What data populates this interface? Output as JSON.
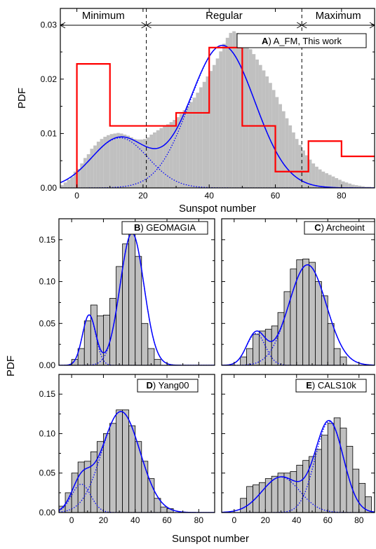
{
  "figure": {
    "y_title": "PDF",
    "x_title": "Sunspot number",
    "colors": {
      "histogram": "#c0c0c0",
      "bar_edge": "#000000",
      "fit": "#0000ff",
      "step": "#ff0000"
    }
  },
  "chart_data": [
    {
      "type": "bar",
      "panel": "A",
      "label_letter": "A",
      "label_text": ") A_FM, This work",
      "xlim": [
        -5,
        90
      ],
      "ylim": [
        0,
        0.033
      ],
      "x_ticks": [
        0,
        20,
        40,
        60,
        80
      ],
      "x_tick_labels": [
        "0",
        "20",
        "40",
        "60",
        "80"
      ],
      "y_ticks": [
        0,
        0.01,
        0.02,
        0.03
      ],
      "y_tick_labels": [
        "0.00",
        "0.01",
        "0.02",
        "0.03"
      ],
      "xlabel": "Sunspot number",
      "ylabel": "PDF",
      "regions": [
        {
          "name": "Minimum",
          "from": -5,
          "to": 21
        },
        {
          "name": "Regular",
          "from": 21,
          "to": 68
        },
        {
          "name": "Maximum",
          "from": 68,
          "to": 90
        }
      ],
      "dividers": [
        21,
        68
      ],
      "histogram": {
        "bin_start": -5,
        "bin_width": 1,
        "values": [
          0.0005,
          0.001,
          0.0015,
          0.002,
          0.003,
          0.0035,
          0.0045,
          0.0055,
          0.0062,
          0.0072,
          0.0078,
          0.0085,
          0.009,
          0.0094,
          0.0097,
          0.0099,
          0.01,
          0.0101,
          0.01,
          0.0098,
          0.0096,
          0.0093,
          0.009,
          0.0089,
          0.0089,
          0.009,
          0.0093,
          0.0098,
          0.0102,
          0.0106,
          0.011,
          0.0113,
          0.0117,
          0.0121,
          0.0125,
          0.013,
          0.0136,
          0.0143,
          0.015,
          0.0158,
          0.0166,
          0.0175,
          0.0185,
          0.0195,
          0.0205,
          0.0215,
          0.0226,
          0.0238,
          0.0251,
          0.0265,
          0.0276,
          0.0285,
          0.0288,
          0.0285,
          0.0277,
          0.0268,
          0.0262,
          0.0255,
          0.0246,
          0.0236,
          0.0226,
          0.0216,
          0.0205,
          0.0193,
          0.018,
          0.0167,
          0.0154,
          0.0141,
          0.0128,
          0.0115,
          0.0102,
          0.009,
          0.0079,
          0.0069,
          0.006,
          0.0052,
          0.0045,
          0.0039,
          0.0034,
          0.003,
          0.0027,
          0.0024,
          0.0021,
          0.0018,
          0.0015,
          0.0012,
          0.001,
          0.0008,
          0.0006,
          0.0005,
          0.0004,
          0.0003,
          0.0002,
          0.0002,
          0.0001
        ]
      },
      "step": {
        "edges": [
          0,
          10,
          20,
          30,
          40,
          50,
          60,
          70,
          80,
          90
        ],
        "values": [
          0.0228,
          0.0114,
          0.0114,
          0.0138,
          0.0258,
          0.0114,
          0.003,
          0.0086,
          0.0058
        ]
      },
      "fit": {
        "components": [
          {
            "amp": 0.0092,
            "mu": 13,
            "sigma": 8.5
          },
          {
            "amp": 0.0262,
            "mu": 44,
            "sigma": 9.8
          }
        ]
      }
    },
    {
      "type": "bar",
      "panel": "B",
      "label_letter": "B",
      "label_text": ") GEOMAGIA",
      "xlim": [
        -8,
        90
      ],
      "ylim": [
        0,
        0.175
      ],
      "x_ticks": [
        0,
        20,
        40,
        60,
        80
      ],
      "x_tick_labels": [],
      "y_ticks": [
        0,
        0.05,
        0.1,
        0.15
      ],
      "y_tick_labels": [
        "0.00",
        "0.05",
        "0.10",
        "0.15"
      ],
      "histogram": {
        "bin_start": 0,
        "bin_width": 4,
        "values": [
          0.007,
          0.02,
          0.053,
          0.072,
          0.059,
          0.06,
          0.08,
          0.118,
          0.145,
          0.162,
          0.13,
          0.05,
          0.02,
          0.007
        ]
      },
      "fit": {
        "components": [
          {
            "amp": 0.06,
            "mu": 11,
            "sigma": 4.2
          },
          {
            "amp": 0.158,
            "mu": 38,
            "sigma": 7.5
          }
        ]
      }
    },
    {
      "type": "bar",
      "panel": "C",
      "label_letter": "C",
      "label_text": ") Archeoint",
      "xlim": [
        -8,
        90
      ],
      "ylim": [
        0,
        0.175
      ],
      "x_ticks": [
        0,
        20,
        40,
        60,
        80
      ],
      "x_tick_labels": [],
      "y_ticks": [
        0,
        0.05,
        0.1,
        0.15
      ],
      "y_tick_labels": [],
      "histogram": {
        "bin_start": 4,
        "bin_width": 4,
        "values": [
          0.01,
          0.02,
          0.037,
          0.041,
          0.043,
          0.047,
          0.063,
          0.088,
          0.115,
          0.126,
          0.127,
          0.123,
          0.1,
          0.083,
          0.05,
          0.02,
          0.01
        ]
      },
      "fit": {
        "components": [
          {
            "amp": 0.038,
            "mu": 14,
            "sigma": 6
          },
          {
            "amp": 0.12,
            "mu": 47,
            "sigma": 12
          }
        ]
      }
    },
    {
      "type": "bar",
      "panel": "D",
      "label_letter": "D",
      "label_text": ") Yang00",
      "xlim": [
        -8,
        90
      ],
      "ylim": [
        0,
        0.175
      ],
      "x_ticks": [
        0,
        20,
        40,
        60,
        80
      ],
      "x_tick_labels": [
        "0",
        "20",
        "40",
        "60",
        "80"
      ],
      "y_ticks": [
        0,
        0.05,
        0.1,
        0.15
      ],
      "y_tick_labels": [
        "0.00",
        "0.05",
        "0.10",
        "0.15"
      ],
      "histogram": {
        "bin_start": -8,
        "bin_width": 4,
        "values": [
          0.008,
          0.025,
          0.05,
          0.064,
          0.065,
          0.077,
          0.09,
          0.1,
          0.113,
          0.13,
          0.13,
          0.11,
          0.09,
          0.065,
          0.043,
          0.018,
          0.007,
          0.005
        ]
      },
      "fit": {
        "components": [
          {
            "amp": 0.036,
            "mu": 6,
            "sigma": 6
          },
          {
            "amp": 0.128,
            "mu": 31,
            "sigma": 12
          }
        ]
      }
    },
    {
      "type": "bar",
      "panel": "E",
      "label_letter": "E",
      "label_text": ") CALS10k",
      "xlim": [
        -8,
        90
      ],
      "ylim": [
        0,
        0.175
      ],
      "x_ticks": [
        0,
        20,
        40,
        60,
        80
      ],
      "x_tick_labels": [
        "0",
        "20",
        "40",
        "60",
        "80"
      ],
      "y_ticks": [
        0,
        0.05,
        0.1,
        0.15
      ],
      "y_tick_labels": [],
      "histogram": {
        "bin_start": 4,
        "bin_width": 4,
        "values": [
          0.018,
          0.033,
          0.035,
          0.038,
          0.043,
          0.046,
          0.05,
          0.05,
          0.052,
          0.06,
          0.066,
          0.071,
          0.08,
          0.098,
          0.113,
          0.12,
          0.107,
          0.084,
          0.055,
          0.037,
          0.02
        ]
      },
      "fit": {
        "components": [
          {
            "amp": 0.045,
            "mu": 30,
            "sigma": 12
          },
          {
            "amp": 0.115,
            "mu": 61,
            "sigma": 9
          }
        ]
      }
    }
  ]
}
